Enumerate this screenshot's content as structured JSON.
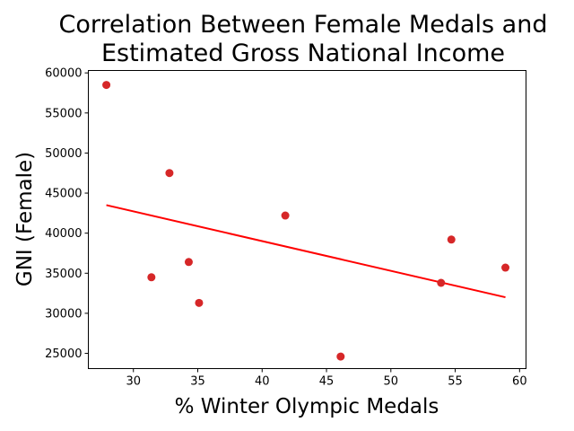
{
  "chart_data": {
    "type": "scatter",
    "title_lines": [
      "Correlation Between Female Medals and",
      "Estimated Gross National Income"
    ],
    "xlabel": "% Winter Olympic Medals",
    "ylabel": "GNI (Female)",
    "xlim": [
      26.5,
      60.5
    ],
    "ylim": [
      23100,
      60300
    ],
    "xticks": [
      30,
      35,
      40,
      45,
      50,
      55,
      60
    ],
    "yticks": [
      25000,
      30000,
      35000,
      40000,
      45000,
      50000,
      55000,
      60000
    ],
    "grid": false,
    "legend": "none",
    "colors": {
      "points": "#d62728",
      "trendline": "#ff0000"
    },
    "points": [
      {
        "x": 27.9,
        "y": 58500
      },
      {
        "x": 32.8,
        "y": 47500
      },
      {
        "x": 41.8,
        "y": 42200
      },
      {
        "x": 54.7,
        "y": 39200
      },
      {
        "x": 58.9,
        "y": 35700
      },
      {
        "x": 34.3,
        "y": 36400
      },
      {
        "x": 31.4,
        "y": 34500
      },
      {
        "x": 53.9,
        "y": 33800
      },
      {
        "x": 35.1,
        "y": 31300
      },
      {
        "x": 46.1,
        "y": 24600
      }
    ],
    "trendline": {
      "x": [
        27.9,
        58.9
      ],
      "y": [
        43500,
        32000
      ]
    }
  }
}
